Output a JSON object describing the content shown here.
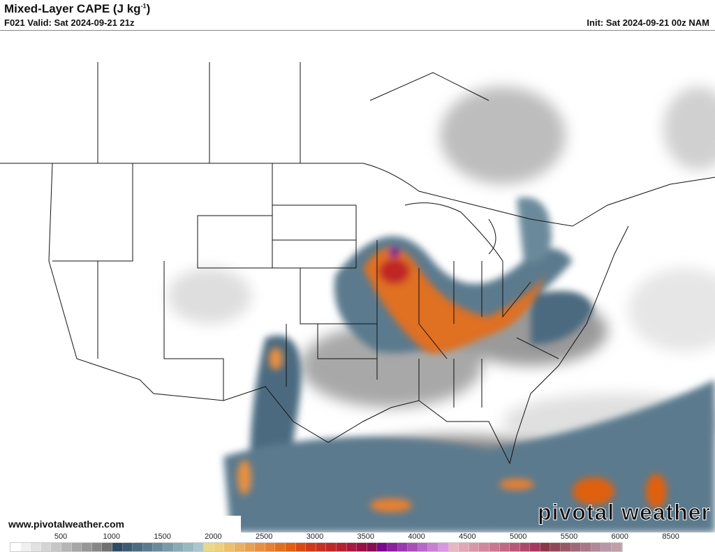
{
  "header": {
    "title": "Mixed-Layer CAPE (J kg",
    "title_sup": "-1",
    "title_close": ")",
    "valid": "F021 Valid: Sat 2024-09-21 21z",
    "init": "Init: Sat 2024-09-21 00z NAM"
  },
  "footer": {
    "url": "www.pivotalweather.com",
    "logo": "pivotal weather"
  },
  "colorbar": {
    "labels": [
      "500",
      "1000",
      "1500",
      "2000",
      "2500",
      "3000",
      "3500",
      "4000",
      "4500",
      "5000",
      "5500",
      "6000",
      "8500"
    ],
    "colors": [
      "#ffffff",
      "#f0f0f0",
      "#e2e2e2",
      "#d4d4d4",
      "#c6c6c6",
      "#b6b6b6",
      "#a6a6a6",
      "#979797",
      "#878787",
      "#707070",
      "#2f4a63",
      "#3d5a72",
      "#4c6a80",
      "#5b7a8e",
      "#6a8a9b",
      "#7a9aa8",
      "#8aaab4",
      "#9ab8c0",
      "#a9c8cc",
      "#e8d88a",
      "#ecd07a",
      "#eac06a",
      "#e8b060",
      "#e8a050",
      "#e89040",
      "#e88030",
      "#e07020",
      "#e06010",
      "#d84a10",
      "#d03a18",
      "#c83020",
      "#c02828",
      "#b82030",
      "#a81840",
      "#981048",
      "#880c50",
      "#7a0890",
      "#8a20a0",
      "#9a38b0",
      "#a850b8",
      "#b868c8",
      "#c880d0",
      "#d898e0",
      "#e8b8c0",
      "#e0a8b4",
      "#d898a8",
      "#d0889c",
      "#c87890",
      "#c06884",
      "#b85878",
      "#b0486c",
      "#a83860",
      "#8a3848",
      "#904858",
      "#985868",
      "#a06878",
      "#a87888",
      "#b08898",
      "#b898a8",
      "#c0a0a8"
    ],
    "colors_that_matter": {
      "low": "#ffffff",
      "mid": "#5b7a8e",
      "high": "#e07020",
      "extreme": "#7a0890"
    }
  },
  "map": {
    "region": "CONUS",
    "product": "Mixed-Layer CAPE"
  }
}
